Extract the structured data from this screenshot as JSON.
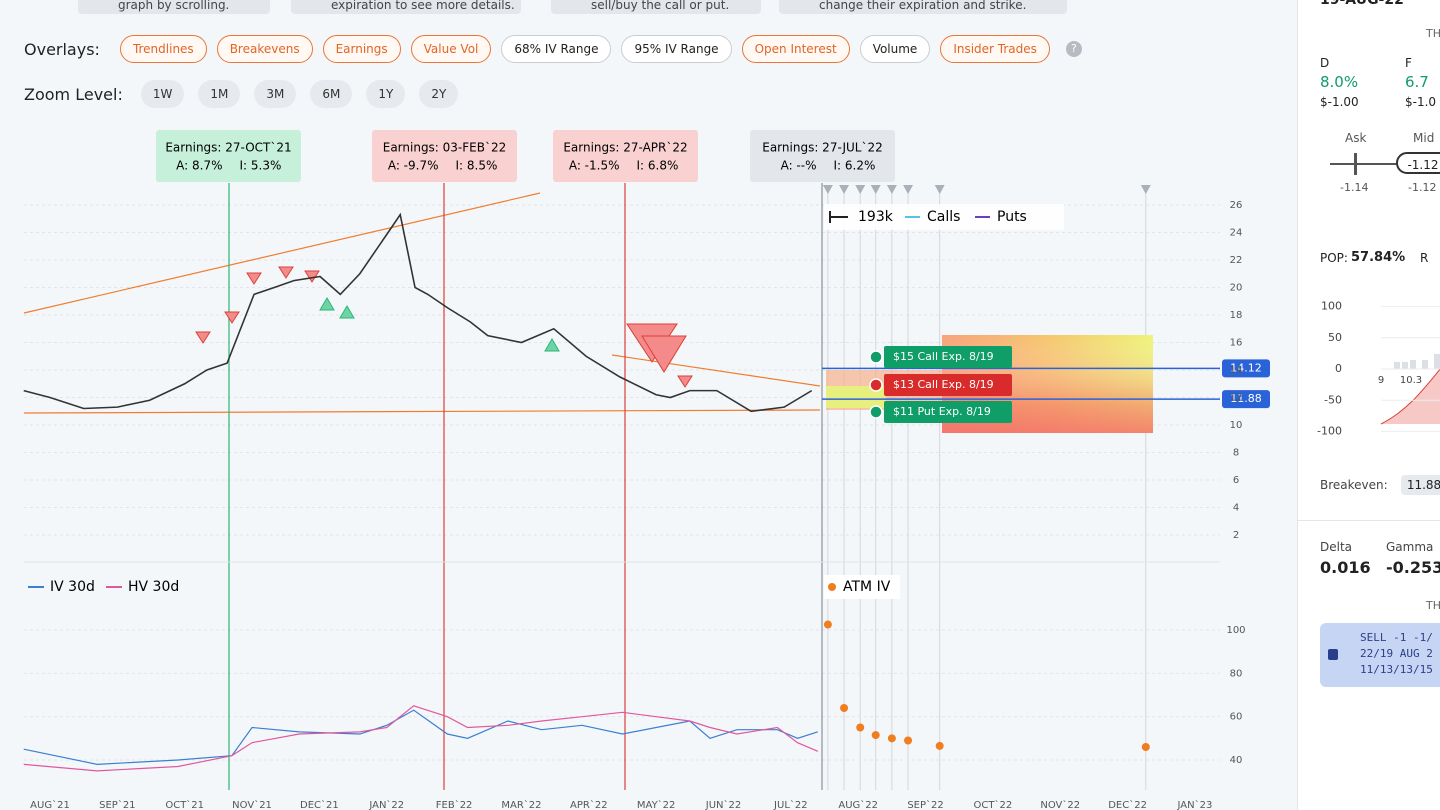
{
  "hints": [
    "graph by scrolling.",
    "expiration to see more details.",
    "sell/buy the call or put.",
    "change their expiration and strike."
  ],
  "overlays": {
    "label": "Overlays:",
    "buttons": [
      {
        "text": "Trendlines",
        "active": true
      },
      {
        "text": "Breakevens",
        "active": true
      },
      {
        "text": "Earnings",
        "active": true
      },
      {
        "text": "Value Vol",
        "active": true
      },
      {
        "text": "68% IV Range",
        "active": false
      },
      {
        "text": "95% IV Range",
        "active": false
      },
      {
        "text": "Open Interest",
        "active": true
      },
      {
        "text": "Volume",
        "active": false
      },
      {
        "text": "Insider Trades",
        "active": true
      }
    ],
    "help": "?"
  },
  "zoom": {
    "label": "Zoom Level:",
    "buttons": [
      "1W",
      "1M",
      "3M",
      "6M",
      "1Y",
      "2Y"
    ]
  },
  "earnings": [
    {
      "title": "Earnings: 27-OCT`21",
      "actual": "A: 8.7%",
      "implied": "I: 5.3%",
      "tone": "up"
    },
    {
      "title": "Earnings: 03-FEB`22",
      "actual": "A: -9.7%",
      "implied": "I: 8.5%",
      "tone": "down"
    },
    {
      "title": "Earnings: 27-APR`22",
      "actual": "A: -1.5%",
      "implied": "I: 6.8%",
      "tone": "down"
    },
    {
      "title": "Earnings: 27-JUL`22",
      "actual": "A: --%",
      "implied": "I: 6.2%",
      "tone": "pending"
    }
  ],
  "x_labels": [
    "AUG`21",
    "SEP`21",
    "OCT`21",
    "NOV`21",
    "DEC`21",
    "JAN`22",
    "FEB`22",
    "MAR`22",
    "APR`22",
    "MAY`22",
    "JUN`22",
    "JUL`22",
    "AUG`22",
    "SEP`22",
    "OCT`22",
    "NOV`22",
    "DEC`22",
    "JAN`23"
  ],
  "price_chart": {
    "type": "line",
    "ylim": [
      1,
      27
    ],
    "yticks": [
      2,
      4,
      6,
      8,
      10,
      12,
      14,
      16,
      18,
      20,
      22,
      24,
      26
    ],
    "x": [
      -0.39,
      0,
      0.5,
      1,
      1.48,
      2,
      2.33,
      2.63,
      3.03,
      3.33,
      3.62,
      4.01,
      4.31,
      4.6,
      5.02,
      5.2,
      5.42,
      5.61,
      5.91,
      6.24,
      6.5,
      7,
      7.48,
      7.96,
      8.46,
      9.0,
      9.21,
      9.5,
      9.9,
      10.41,
      10.9,
      11.31
    ],
    "values": [
      12.5,
      12,
      11.2,
      11.3,
      11.8,
      13,
      14,
      14.5,
      19.5,
      20,
      20.5,
      20.8,
      19.5,
      21,
      24,
      25.3,
      20,
      19.5,
      18.5,
      17.5,
      16.5,
      16,
      17,
      15,
      13.5,
      12.2,
      12,
      12.5,
      12.5,
      11,
      11.3,
      12.5
    ],
    "color": "#333333",
    "levels": [
      {
        "value": 14.12,
        "color": "#2a62d8"
      },
      {
        "value": 11.88,
        "color": "#2a62d8"
      }
    ],
    "legend": {
      "volume": "193k",
      "calls": "Calls",
      "puts": "Puts"
    },
    "legs": [
      {
        "text": "$15 Call Exp. 8/19",
        "color": "#0f9d68"
      },
      {
        "text": "$13 Call Exp. 8/19",
        "color": "#d92b2b"
      },
      {
        "text": "$11 Put Exp. 8/19",
        "color": "#0f9d68"
      }
    ]
  },
  "iv_chart": {
    "type": "line",
    "ylim": [
      30,
      120
    ],
    "yticks": [
      40,
      60,
      80,
      100
    ],
    "x": [
      -0.39,
      0.7,
      1.9,
      2.7,
      3.0,
      3.7,
      4.6,
      5.0,
      5.4,
      5.9,
      6.2,
      6.8,
      7.3,
      7.9,
      8.5,
      9.0,
      9.5,
      9.8,
      10.2,
      10.8,
      11.1,
      11.4
    ],
    "series": [
      {
        "name": "IV 30d",
        "color": "#3b7fd0",
        "values": [
          45,
          38,
          40,
          42,
          55,
          53,
          52,
          56,
          63,
          52,
          50,
          58,
          54,
          56,
          52,
          55,
          58,
          50,
          54,
          54,
          50,
          53
        ]
      },
      {
        "name": "HV 30d",
        "color": "#e0589c",
        "values": [
          38,
          35,
          37,
          42,
          48,
          52,
          53,
          55,
          65,
          60,
          55,
          56,
          58,
          60,
          62,
          60,
          58,
          55,
          52,
          55,
          48,
          44
        ]
      }
    ],
    "atm": {
      "name": "ATM IV",
      "color": "#f07d1e",
      "x": [
        11.55,
        11.79,
        12.03,
        12.26,
        12.5,
        12.74,
        13.21,
        16.27
      ],
      "values": [
        102.5,
        64,
        55,
        51.5,
        50,
        49,
        46.5,
        46
      ]
    }
  },
  "panel": {
    "top": "19-AUG-22",
    "head1": "TH",
    "cols": [
      {
        "label": "D",
        "pct": "8.0%",
        "amt": "$-1.00"
      },
      {
        "label": "F",
        "pct": "6.7",
        "amt": "$-1.0"
      }
    ],
    "ask": "Ask",
    "mid": "Mid",
    "price": "-1.12",
    "ask_val": "-1.14",
    "mid_val": "-1.12",
    "pop_label": "POP:",
    "pop": "57.84%",
    "pop_r": "R",
    "mini_chart": {
      "ylim": [
        -100,
        100
      ],
      "yticks": [
        100,
        50,
        0,
        -50,
        -100
      ],
      "x_labels": [
        "9",
        "10.3"
      ]
    },
    "breakeven_label": "Breakeven:",
    "breakeven": "11.88",
    "greeks": [
      {
        "label": "Delta",
        "value": "0.016"
      },
      {
        "label": "Gamma",
        "value": "-0.253"
      }
    ],
    "head2": "TH",
    "order": [
      "SELL -1 -1/",
      "22/19 AUG 2",
      "11/13/13/15"
    ]
  }
}
